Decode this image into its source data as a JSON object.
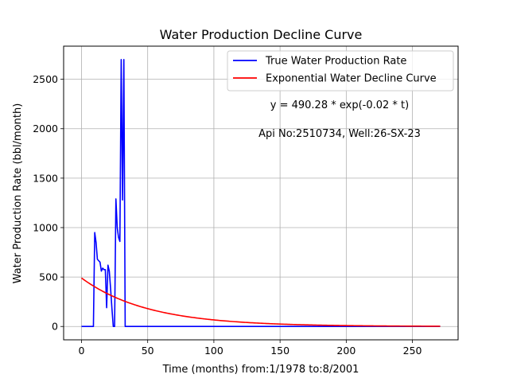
{
  "chart_data": {
    "type": "line",
    "title": "Water Production Decline Curve",
    "xlabel": "Time (months) from:1/1978 to:8/2001",
    "ylabel": "Water Production Rate (bbl/month)",
    "xlim": [
      -13.5,
      284.5
    ],
    "ylim": [
      -135,
      2835
    ],
    "xticks": [
      0,
      50,
      100,
      150,
      200,
      250
    ],
    "yticks": [
      0,
      500,
      1000,
      1500,
      2000,
      2500
    ],
    "grid": true,
    "legend_position": "top-right",
    "annotations": [
      "y = 490.28 * exp(-0.02 * t)",
      "Api No:2510734, Well:26-SX-23"
    ],
    "series": [
      {
        "name": "True Water Production Rate",
        "color": "#0000ff",
        "kind": "points",
        "x": [
          0,
          9,
          10,
          11,
          12,
          13,
          14,
          15,
          16,
          17,
          18,
          19,
          20,
          21,
          22,
          23,
          24,
          25,
          26,
          27,
          28,
          29,
          30,
          31,
          32,
          33,
          35,
          50,
          100,
          150,
          200,
          250,
          271
        ],
        "y": [
          0,
          0,
          950,
          850,
          680,
          665,
          650,
          560,
          590,
          575,
          575,
          190,
          620,
          560,
          380,
          180,
          0,
          0,
          1290,
          1000,
          900,
          860,
          2700,
          1280,
          2700,
          0,
          0,
          0,
          0,
          0,
          0,
          0,
          0
        ]
      },
      {
        "name": "Exponential Water Decline Curve",
        "color": "#ff0000",
        "kind": "exponential",
        "a": 490.28,
        "b": 0.02,
        "x_range": [
          0,
          271
        ]
      }
    ]
  }
}
